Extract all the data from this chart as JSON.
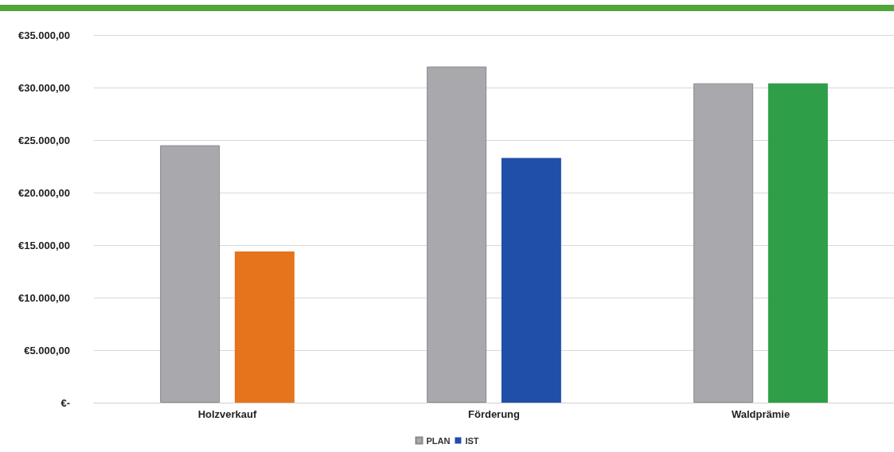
{
  "chart_data": {
    "type": "bar",
    "categories": [
      "Holzverkauf",
      "Förderung",
      "Waldprämie"
    ],
    "series": [
      {
        "name": "PLAN",
        "color": "#a9a9ad",
        "values": [
          24500,
          32000,
          30400
        ]
      },
      {
        "name": "IST",
        "color": "#1f4fa8",
        "colors": [
          "#e6741c",
          "#1f4fa8",
          "#2e9e48"
        ],
        "values": [
          14400,
          23300,
          30400
        ]
      }
    ],
    "ylim": [
      0,
      35000
    ],
    "yticks": [
      {
        "value": 0,
        "label": "€-"
      },
      {
        "value": 5000,
        "label": "€5.000,00"
      },
      {
        "value": 10000,
        "label": "€10.000,00"
      },
      {
        "value": 15000,
        "label": "€15.000,00"
      },
      {
        "value": 20000,
        "label": "€20.000,00"
      },
      {
        "value": 25000,
        "label": "€25.000,00"
      },
      {
        "value": 30000,
        "label": "€30.000,00"
      },
      {
        "value": 35000,
        "label": "€35.000,00"
      }
    ],
    "grid": "y",
    "legend": "bottom"
  }
}
